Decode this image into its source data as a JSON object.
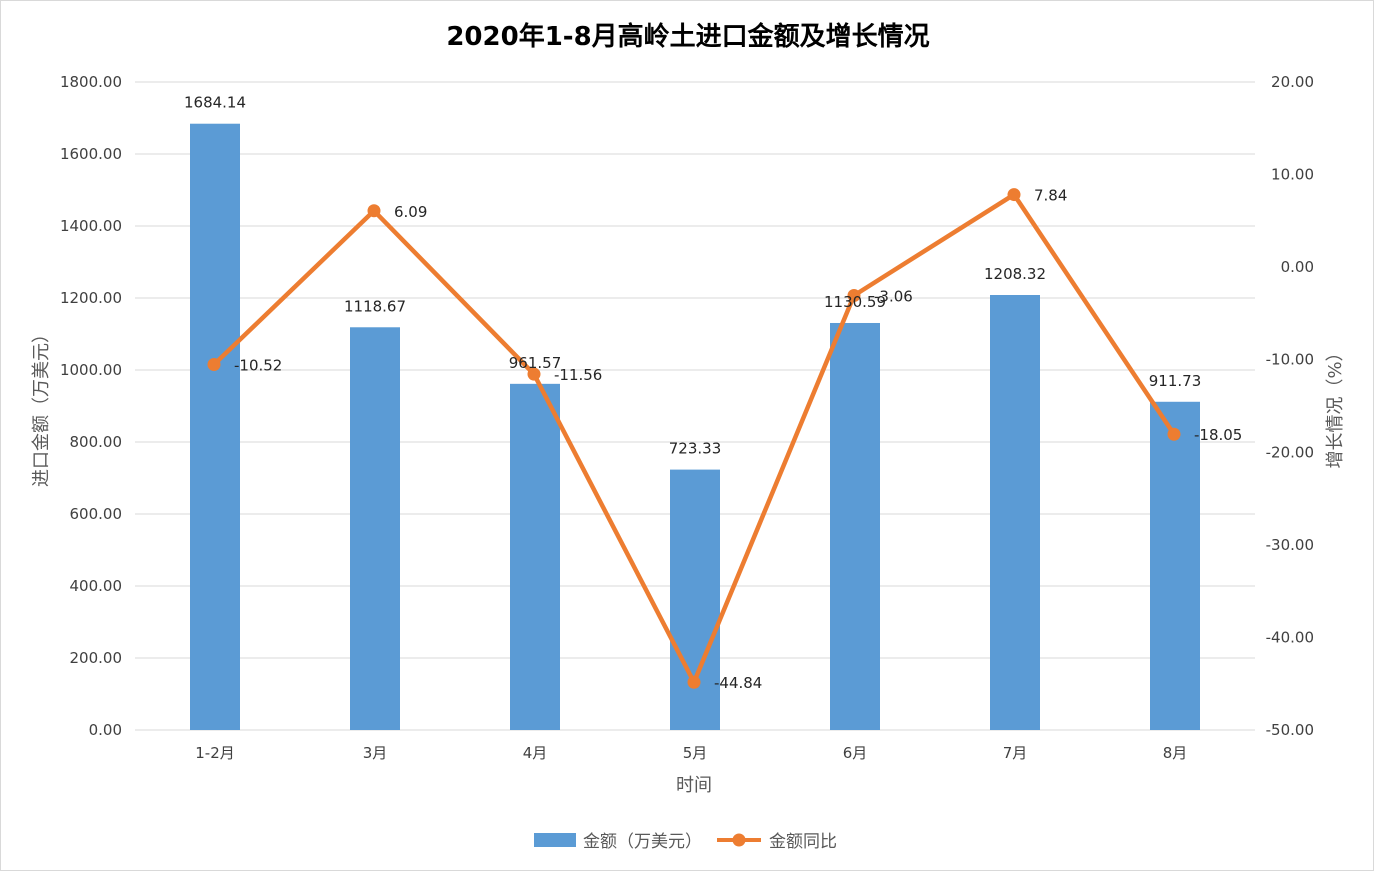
{
  "chart_data": {
    "type": "bar",
    "title": "2020年1-8月高岭土进口金额及增长情况",
    "xlabel": "时间",
    "ylabel": "进口金额（万美元）",
    "y2label": "增长情况（%）",
    "categories": [
      "1-2月",
      "3月",
      "4月",
      "5月",
      "6月",
      "7月",
      "8月"
    ],
    "series": [
      {
        "name": "金额（万美元）",
        "type": "bar",
        "axis": "left",
        "color": "#5b9bd5",
        "values": [
          1684.14,
          1118.67,
          961.57,
          723.33,
          1130.59,
          1208.32,
          911.73
        ],
        "labels": [
          "1684.14",
          "1118.67",
          "961.57",
          "723.33",
          "1130.59",
          "1208.32",
          "911.73"
        ]
      },
      {
        "name": "金额同比",
        "type": "line",
        "axis": "right",
        "color": "#ed7d31",
        "values": [
          -10.52,
          6.09,
          -11.56,
          -44.84,
          -3.06,
          7.84,
          -18.05
        ],
        "labels": [
          "-10.52",
          "6.09",
          "-11.56",
          "-44.84",
          "-3.06",
          "7.84",
          "-18.05"
        ]
      }
    ],
    "ylim": [
      0,
      1800
    ],
    "y_ticks": [
      "0.00",
      "200.00",
      "400.00",
      "600.00",
      "800.00",
      "1000.00",
      "1200.00",
      "1400.00",
      "1600.00",
      "1800.00"
    ],
    "y2lim": [
      -50,
      20
    ],
    "y2_ticks": [
      "-50.00",
      "-40.00",
      "-30.00",
      "-20.00",
      "-10.00",
      "0.00",
      "10.00",
      "20.00"
    ],
    "grid": true,
    "legend_position": "bottom"
  }
}
